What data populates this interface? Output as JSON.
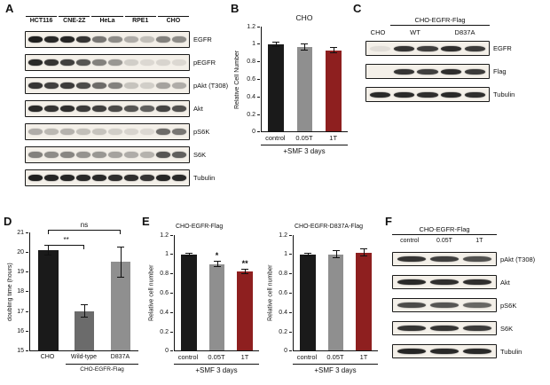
{
  "panelA": {
    "label": "A",
    "cell_lines": [
      {
        "name": "HCT116"
      },
      {
        "name": "CNE-2Z"
      },
      {
        "name": "HeLa"
      },
      {
        "name": "RPE1"
      },
      {
        "name": "CHO"
      }
    ],
    "blots": [
      {
        "name": "EGFR",
        "lanes": [
          0.95,
          0.9,
          0.92,
          0.85,
          0.55,
          0.45,
          0.3,
          0.22,
          0.5,
          0.45
        ]
      },
      {
        "name": "pEGFR",
        "lanes": [
          0.9,
          0.85,
          0.8,
          0.7,
          0.5,
          0.4,
          0.15,
          0.1,
          0.12,
          0.1
        ]
      },
      {
        "name": "pAkt (T308)",
        "lanes": [
          0.85,
          0.8,
          0.82,
          0.75,
          0.6,
          0.5,
          0.2,
          0.15,
          0.35,
          0.3
        ]
      },
      {
        "name": "Akt",
        "lanes": [
          0.9,
          0.85,
          0.88,
          0.82,
          0.8,
          0.75,
          0.7,
          0.65,
          0.78,
          0.72
        ]
      },
      {
        "name": "pS6K",
        "lanes": [
          0.3,
          0.25,
          0.28,
          0.22,
          0.2,
          0.15,
          0.12,
          0.1,
          0.6,
          0.55
        ]
      },
      {
        "name": "S6K",
        "lanes": [
          0.5,
          0.45,
          0.48,
          0.42,
          0.4,
          0.35,
          0.3,
          0.28,
          0.7,
          0.65
        ]
      },
      {
        "name": "Tubulin",
        "lanes": [
          0.95,
          0.92,
          0.92,
          0.9,
          0.9,
          0.88,
          0.88,
          0.85,
          0.92,
          0.9
        ]
      }
    ]
  },
  "panelB": {
    "label": "B"
  },
  "panelC": {
    "label": "C",
    "header": "CHO-EGFR-Flag",
    "lane_cho": "CHO",
    "lane_wt": "WT",
    "lane_d837a": "D837A",
    "blots": [
      {
        "name": "EGFR",
        "lanes": [
          0.08,
          0.85,
          0.8,
          0.88,
          0.82
        ]
      },
      {
        "name": "Flag",
        "lanes": [
          0,
          0.85,
          0.8,
          0.88,
          0.82
        ]
      },
      {
        "name": "Tubulin",
        "lanes": [
          0.9,
          0.9,
          0.88,
          0.9,
          0.88
        ]
      }
    ]
  },
  "panelD": {
    "label": "D"
  },
  "panelE": {
    "label": "E"
  },
  "panelF": {
    "label": "F",
    "header": "CHO-EGFR-Flag",
    "lanes": [
      "control",
      "0.05T",
      "1T"
    ],
    "blots": [
      {
        "name": "pAkt (T308)",
        "lanes": [
          0.85,
          0.8,
          0.72
        ]
      },
      {
        "name": "Akt",
        "lanes": [
          0.9,
          0.88,
          0.88
        ]
      },
      {
        "name": "pS6K",
        "lanes": [
          0.75,
          0.7,
          0.62
        ]
      },
      {
        "name": "S6K",
        "lanes": [
          0.85,
          0.85,
          0.82
        ]
      },
      {
        "name": "Tubulin",
        "lanes": [
          0.92,
          0.9,
          0.9
        ]
      }
    ]
  },
  "chart_data": [
    {
      "id": "B",
      "type": "bar",
      "title": "CHO",
      "categories": [
        "control",
        "0.05T",
        "1T"
      ],
      "values": [
        1.0,
        0.97,
        0.93
      ],
      "errors": [
        0.03,
        0.04,
        0.04
      ],
      "colors": [
        "#1a1a1a",
        "#8f8f8f",
        "#8e1f1f"
      ],
      "sig": [
        "",
        "",
        ""
      ],
      "ylabel": "Relative Cell Number",
      "xlabel": "+SMF 3 days",
      "ylim": [
        0,
        1.2
      ],
      "yticks": [
        0,
        0.2,
        0.4,
        0.6,
        0.8,
        1,
        1.2
      ],
      "grid": false,
      "legend": "none"
    },
    {
      "id": "D",
      "type": "bar",
      "title": "",
      "categories": [
        "CHO",
        "Wild-type",
        "D837A"
      ],
      "values": [
        20.1,
        17.0,
        19.5
      ],
      "errors": [
        0.25,
        0.35,
        0.8
      ],
      "colors": [
        "#1a1a1a",
        "#6b6b6b",
        "#8f8f8f"
      ],
      "sig": [
        "",
        "",
        ""
      ],
      "ylabel": "doubling time (hours)",
      "xlabel": "",
      "group_label": "CHO-EGFR-Flag",
      "ylim": [
        15,
        21
      ],
      "yticks": [
        15,
        16,
        17,
        18,
        19,
        20,
        21
      ],
      "grid": false,
      "legend": "none",
      "annotations": [
        {
          "text": "**",
          "from": 0,
          "to": 1,
          "top": 14
        },
        {
          "text": "ns",
          "from": 0,
          "to": 2,
          "top": -3
        }
      ]
    },
    {
      "id": "E-left",
      "type": "bar",
      "title": "CHO-EGFR-Flag",
      "categories": [
        "control",
        "0.05T",
        "1T"
      ],
      "values": [
        1.0,
        0.9,
        0.82
      ],
      "errors": [
        0.02,
        0.03,
        0.03
      ],
      "colors": [
        "#1a1a1a",
        "#8f8f8f",
        "#8e1f1f"
      ],
      "sig": [
        "",
        "*",
        "**"
      ],
      "ylabel": "Relative cell number",
      "xlabel": "+SMF 3 days",
      "ylim": [
        0,
        1.2
      ],
      "yticks": [
        0,
        0.2,
        0.4,
        0.6,
        0.8,
        1,
        1.2
      ],
      "grid": false,
      "legend": "none"
    },
    {
      "id": "E-right",
      "type": "bar",
      "title": "CHO-EGFR-D837A-Flag",
      "categories": [
        "control",
        "0.05T",
        "1T"
      ],
      "values": [
        1.0,
        1.0,
        1.02
      ],
      "errors": [
        0.02,
        0.04,
        0.04
      ],
      "colors": [
        "#1a1a1a",
        "#8f8f8f",
        "#8e1f1f"
      ],
      "sig": [
        "",
        "",
        ""
      ],
      "ylabel": "Relative cell number",
      "xlabel": "+SMF 3 days",
      "ylim": [
        0,
        1.2
      ],
      "yticks": [
        0,
        0.2,
        0.4,
        0.6,
        0.8,
        1,
        1.2
      ],
      "grid": false,
      "legend": "none"
    }
  ]
}
